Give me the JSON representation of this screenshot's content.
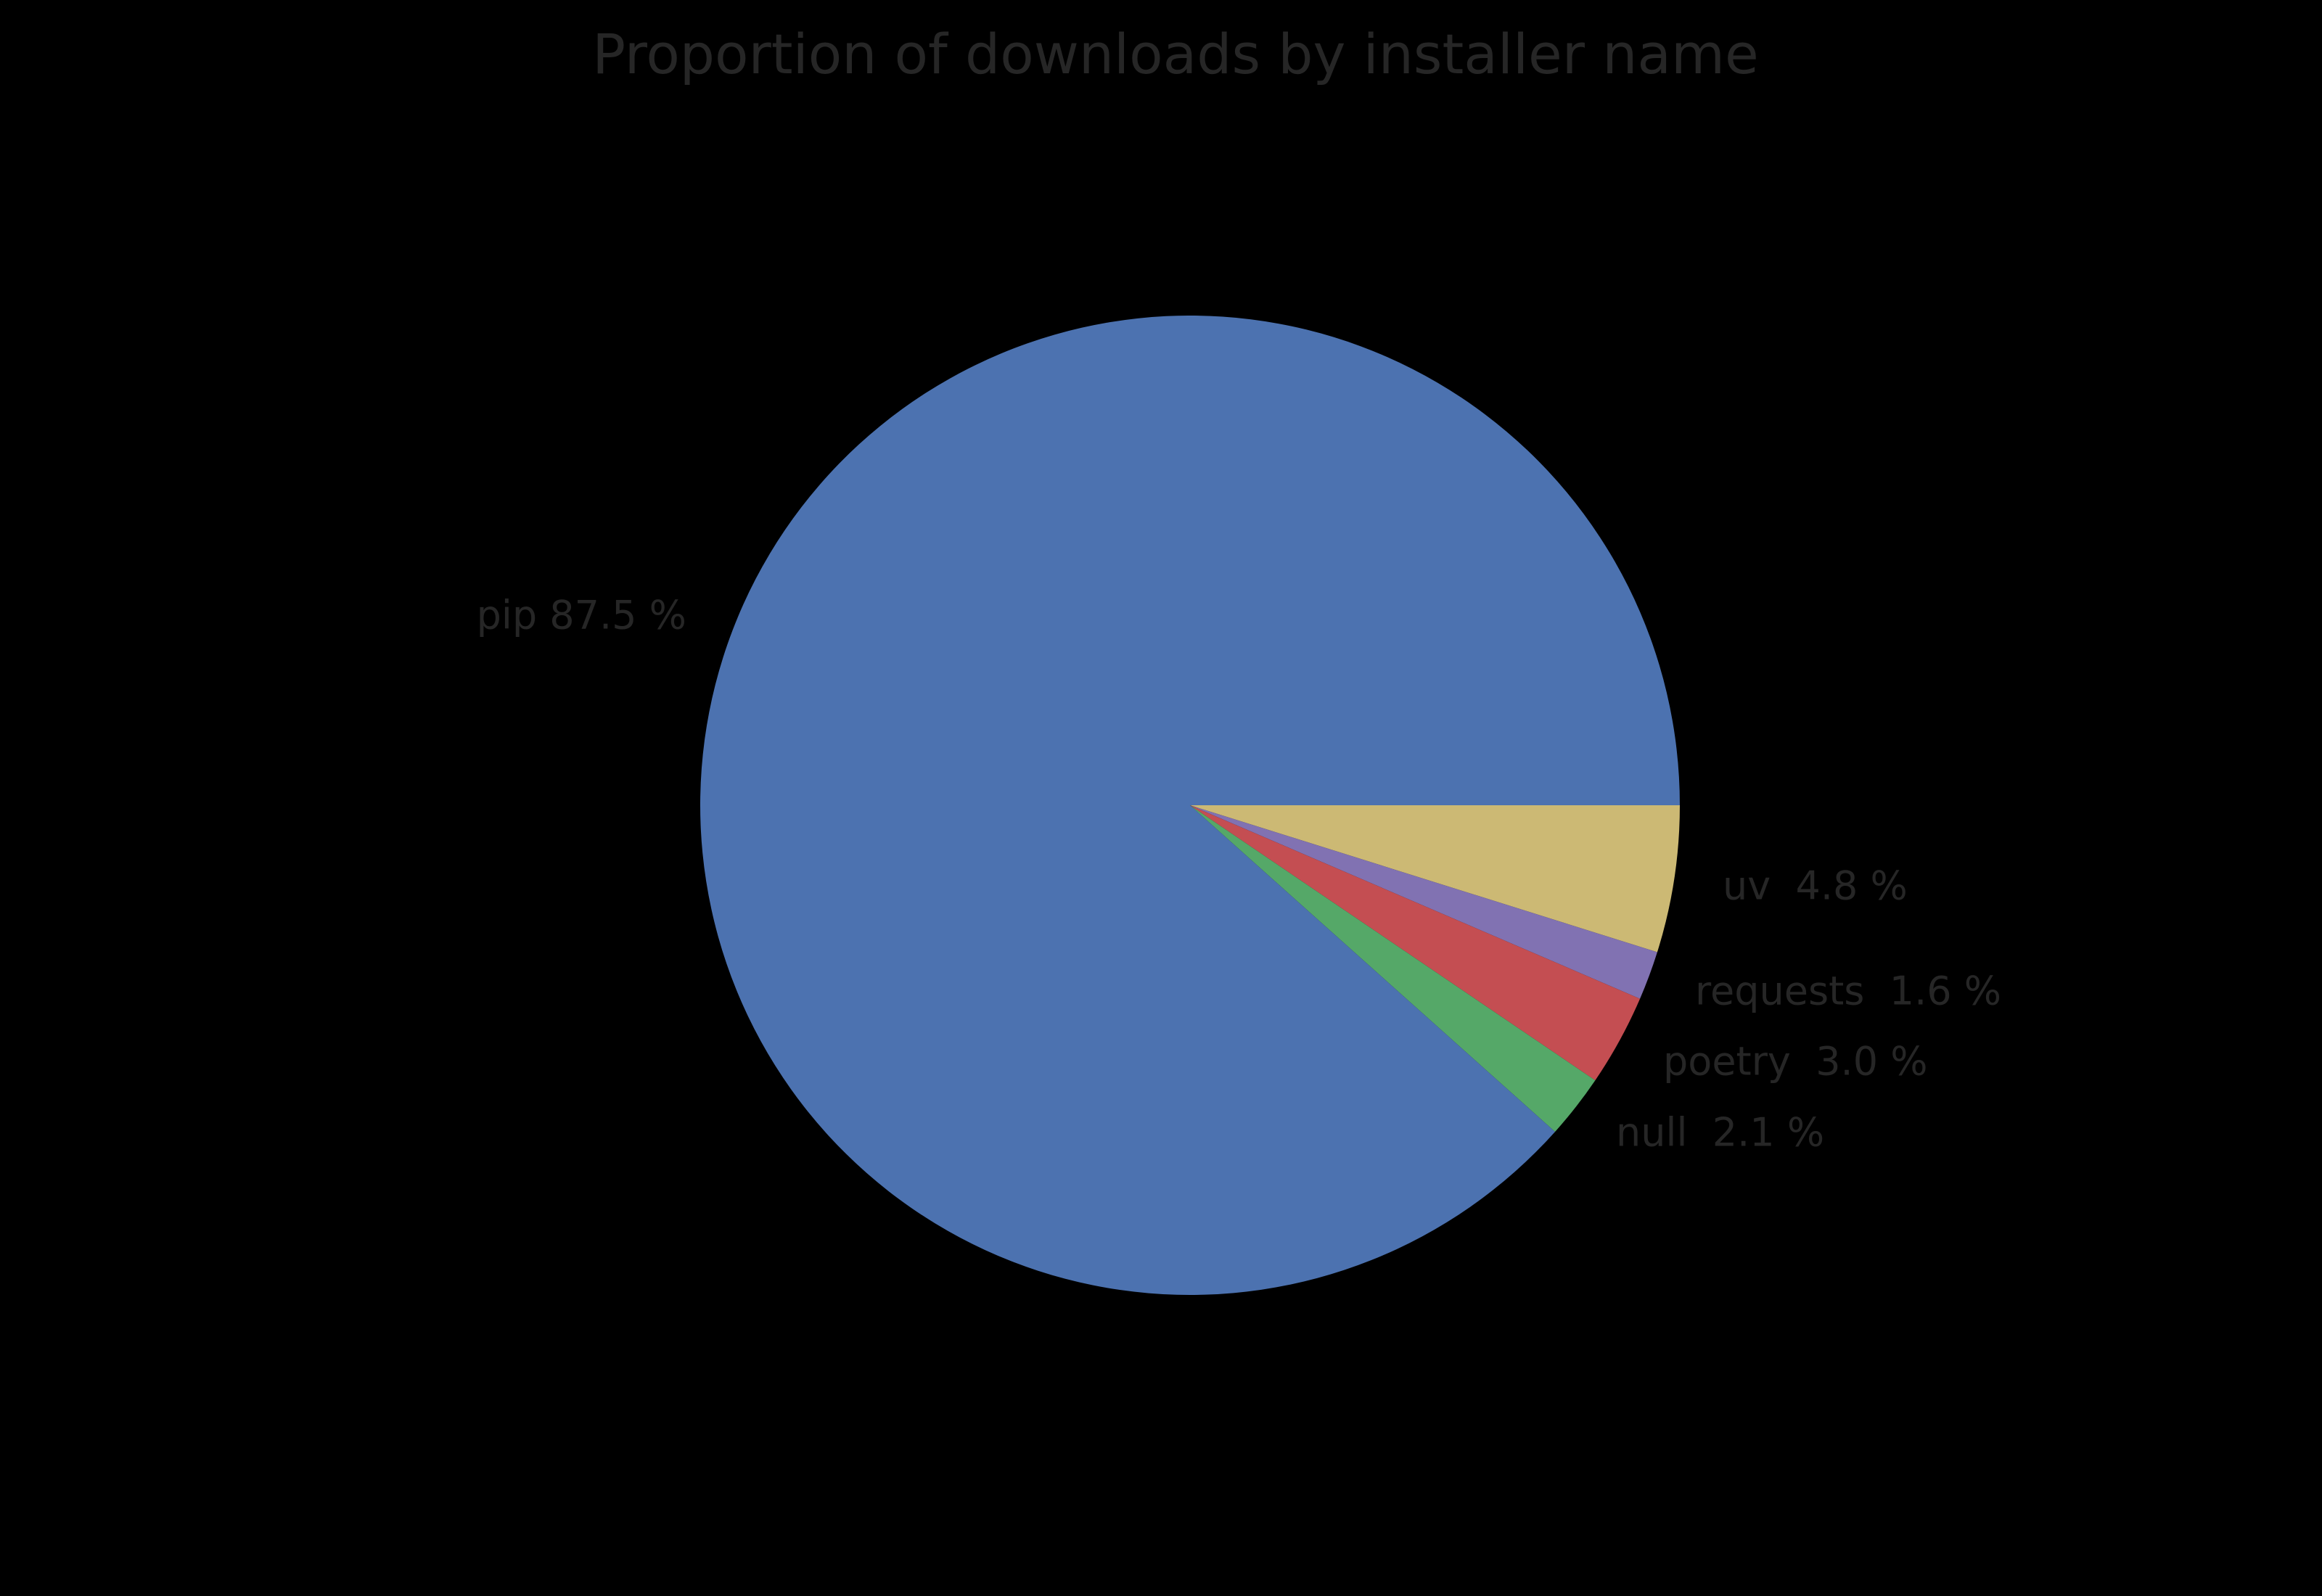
{
  "title": "Proportion of downloads by installer name",
  "colors": {
    "background": "#000000",
    "text": "#262626"
  },
  "chart_data": {
    "type": "pie",
    "title": "Proportion of downloads by installer name",
    "start_angle_deg": 0,
    "direction": "clockwise",
    "legend": "none",
    "slices": [
      {
        "name": "uv",
        "value": 4.8,
        "label": "uv  4.8 %",
        "color": "#CCB974"
      },
      {
        "name": "requests",
        "value": 1.6,
        "label": "requests  1.6 %",
        "color": "#8172B2"
      },
      {
        "name": "poetry",
        "value": 3.0,
        "label": "poetry  3.0 %",
        "color": "#C44E52"
      },
      {
        "name": "null",
        "value": 2.1,
        "label": "null  2.1 %",
        "color": "#55A868"
      },
      {
        "name": "pip",
        "value": 87.5,
        "label": "pip 87.5 %",
        "color": "#4C72B0"
      }
    ]
  }
}
